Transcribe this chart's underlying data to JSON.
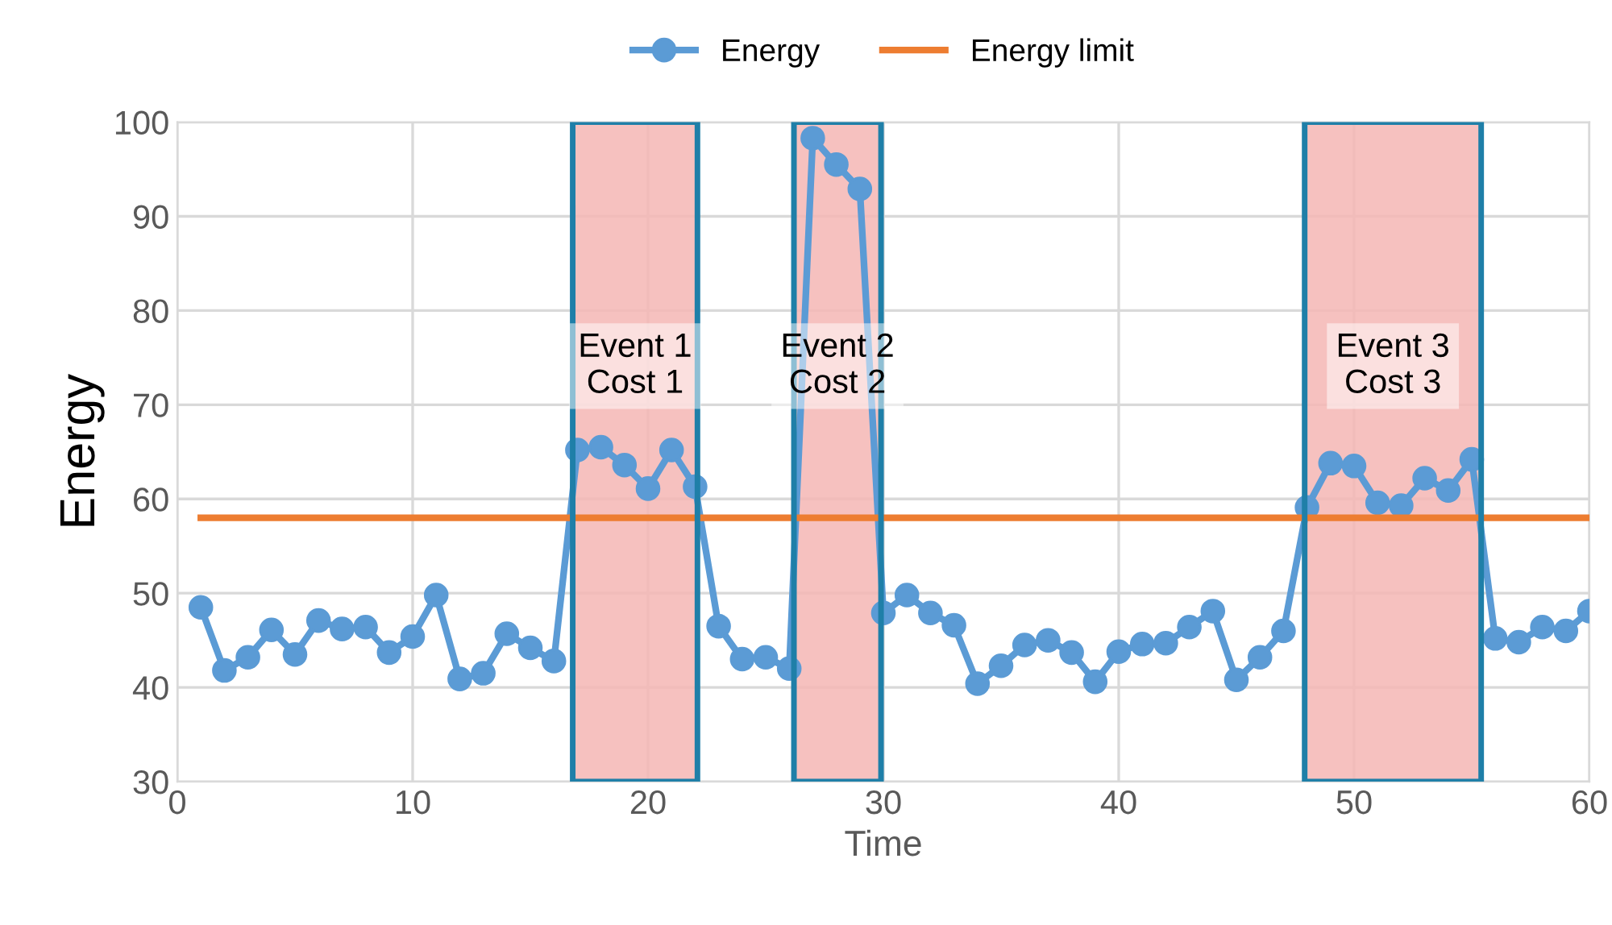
{
  "chart_data": {
    "type": "line",
    "xlabel": "Time",
    "ylabel": "Energy",
    "series": [
      {
        "name": "Energy",
        "color": "#5b9bd5",
        "marker": "circle",
        "x": [
          1,
          2,
          3,
          4,
          5,
          6,
          7,
          8,
          9,
          10,
          11,
          12,
          13,
          14,
          15,
          16,
          17,
          18,
          19,
          20,
          21,
          22,
          23,
          24,
          25,
          26,
          27,
          28,
          29,
          30,
          31,
          32,
          33,
          34,
          35,
          36,
          37,
          38,
          39,
          40,
          41,
          42,
          43,
          44,
          45,
          46,
          47,
          48,
          49,
          50,
          51,
          52,
          53,
          54,
          55,
          56,
          57,
          58,
          59,
          60
        ],
        "values": [
          48.5,
          41.8,
          43.2,
          46.1,
          43.5,
          47.1,
          46.2,
          46.4,
          43.7,
          45.4,
          49.8,
          40.9,
          41.5,
          45.7,
          44.2,
          42.8,
          65.2,
          65.5,
          63.6,
          61.1,
          65.2,
          61.3,
          46.5,
          43.0,
          43.2,
          42.0,
          98.3,
          95.5,
          92.9,
          47.9,
          49.8,
          47.9,
          46.6,
          40.4,
          42.3,
          44.5,
          45.0,
          43.7,
          40.6,
          43.8,
          44.6,
          44.7,
          46.4,
          48.1,
          40.8,
          43.2,
          46.0,
          59.1,
          63.8,
          63.5,
          59.6,
          59.3,
          62.2,
          60.9,
          64.2,
          45.2,
          44.8,
          46.4,
          46.0,
          48.1
        ]
      },
      {
        "name": "Energy limit",
        "color": "#ed7d31",
        "marker": "none",
        "x": [
          1,
          60
        ],
        "values": [
          58,
          58
        ]
      }
    ],
    "bands": [
      {
        "axis": "x",
        "from": 16.8,
        "to": 22.1,
        "label": "Event 1\nCost 1",
        "color": "#f4b6b4"
      },
      {
        "axis": "x",
        "from": 26.2,
        "to": 29.9,
        "label": "Event 2\nCost 2",
        "color": "#f4b6b4"
      },
      {
        "axis": "x",
        "from": 47.9,
        "to": 55.4,
        "label": "Event 3\nCost 3",
        "color": "#f4b6b4"
      }
    ],
    "xlim": [
      0,
      60
    ],
    "xticks": [
      0,
      10,
      20,
      30,
      40,
      50,
      60
    ],
    "ylim": [
      30,
      100
    ],
    "yticks": [
      30,
      40,
      50,
      60,
      70,
      80,
      90,
      100
    ],
    "grid": true,
    "legend": "top",
    "line_style": "solid"
  }
}
